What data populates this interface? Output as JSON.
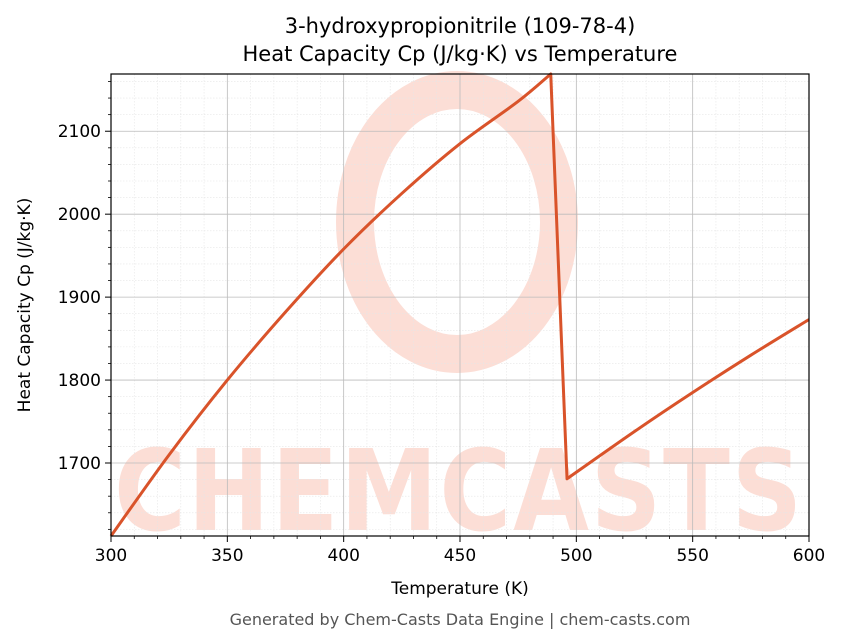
{
  "title_line1": "3-hydroxypropionitrile (109-78-4)",
  "title_line2": "Heat Capacity Cp (J/kg·K) vs Temperature",
  "footer": "Generated by Chem-Casts Data Engine | chem-casts.com",
  "watermark_text": "CHEMCASTS",
  "colors": {
    "line": "#d9532a",
    "watermark": "#fcded6",
    "grid_major": "#bbbbbb",
    "grid_minor": "#e6e6e6"
  },
  "chart_data": {
    "type": "line",
    "title": "3-hydroxypropionitrile (109-78-4)\nHeat Capacity Cp (J/kg·K) vs Temperature",
    "xlabel": "Temperature (K)",
    "ylabel": "Heat Capacity Cp (J/kg·K)",
    "xlim": [
      300,
      600
    ],
    "ylim": [
      1612,
      2169
    ],
    "xticks": [
      300,
      350,
      400,
      450,
      500,
      550,
      600
    ],
    "yticks": [
      1700,
      1800,
      1900,
      2000,
      2100
    ],
    "grid": true,
    "legend": "none",
    "series": [
      {
        "values_x": [
          300,
          325,
          350,
          375,
          400,
          425,
          450,
          475,
          489,
          496,
          525,
          550,
          575,
          600
        ],
        "values_y": [
          1612,
          1710,
          1800,
          1882,
          1958,
          2025,
          2085,
          2136,
          2169,
          1681,
          1738,
          1785,
          1830,
          1873
        ]
      }
    ]
  }
}
